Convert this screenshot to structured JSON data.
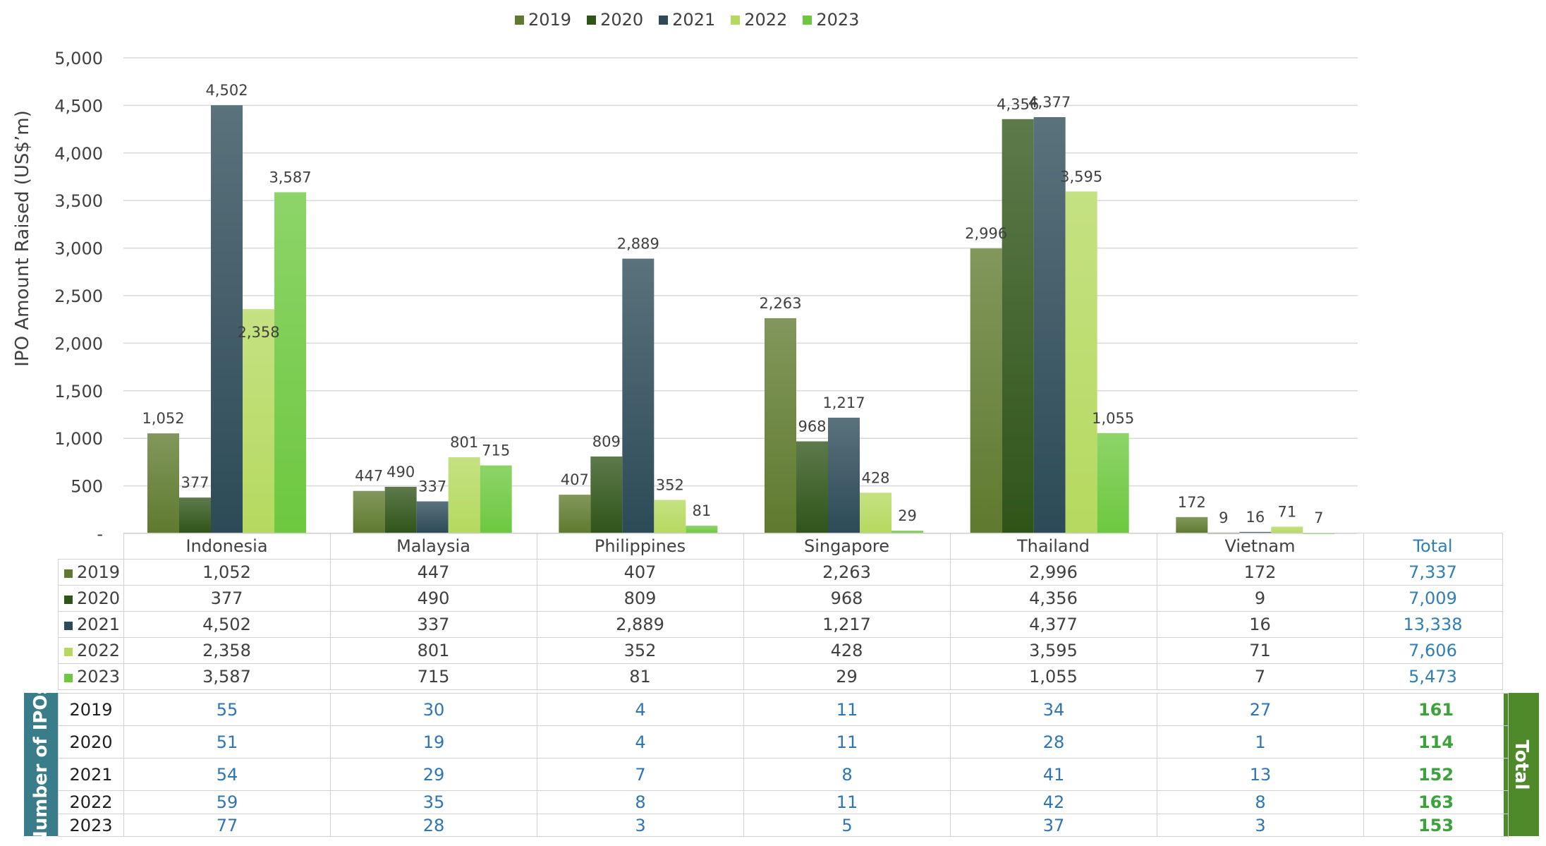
{
  "chart_data": {
    "type": "bar",
    "ylabel": "IPO Amount Raised (US$’m)",
    "ylim": [
      0,
      5000
    ],
    "yticks": [
      "-",
      "500",
      "1,000",
      "1,500",
      "2,000",
      "2,500",
      "3,000",
      "3,500",
      "4,000",
      "4,500",
      "5,000"
    ],
    "categories": [
      "Indonesia",
      "Malaysia",
      "Philippines",
      "Singapore",
      "Thailand",
      "Vietnam"
    ],
    "series": [
      {
        "name": "2019",
        "color": "#5f7a2e",
        "values": [
          1052,
          447,
          407,
          2263,
          2996,
          172
        ],
        "labels": [
          "1,052",
          "447",
          "407",
          "2,263",
          "2,996",
          "172"
        ]
      },
      {
        "name": "2020",
        "color": "#2f5418",
        "values": [
          377,
          490,
          809,
          968,
          4356,
          9
        ],
        "labels": [
          "377",
          "490",
          "809",
          "968",
          "4,356",
          "9"
        ]
      },
      {
        "name": "2021",
        "color": "#2c4a57",
        "values": [
          4502,
          337,
          2889,
          1217,
          4377,
          16
        ],
        "labels": [
          "4,502",
          "337",
          "2,889",
          "1,217",
          "4,377",
          "16"
        ]
      },
      {
        "name": "2022",
        "color": "#b5d95f",
        "values": [
          2358,
          801,
          352,
          428,
          3595,
          71
        ],
        "labels": [
          "2,358",
          "801",
          "352",
          "428",
          "3,595",
          "71"
        ]
      },
      {
        "name": "2023",
        "color": "#6dc83f",
        "values": [
          3587,
          715,
          81,
          29,
          1055,
          7
        ],
        "labels": [
          "3,587",
          "715",
          "81",
          "29",
          "1,055",
          "7"
        ]
      }
    ]
  },
  "amount_table": {
    "total_header": "Total",
    "rows": [
      {
        "year": "2019",
        "color": "#5f7a2e",
        "cells": [
          "1,052",
          "447",
          "407",
          "2,263",
          "2,996",
          "172"
        ],
        "total": "7,337"
      },
      {
        "year": "2020",
        "color": "#2f5418",
        "cells": [
          "377",
          "490",
          "809",
          "968",
          "4,356",
          "9"
        ],
        "total": "7,009"
      },
      {
        "year": "2021",
        "color": "#2c4a57",
        "cells": [
          "4,502",
          "337",
          "2,889",
          "1,217",
          "4,377",
          "16"
        ],
        "total": "13,338"
      },
      {
        "year": "2022",
        "color": "#b5d95f",
        "cells": [
          "2,358",
          "801",
          "352",
          "428",
          "3,595",
          "71"
        ],
        "total": "7,606"
      },
      {
        "year": "2023",
        "color": "#6dc83f",
        "cells": [
          "3,587",
          "715",
          "81",
          "29",
          "1,055",
          "7"
        ],
        "total": "5,473"
      }
    ]
  },
  "ipo_table": {
    "side_label": "Number of IPOs",
    "total_label": "Total",
    "rows": [
      {
        "year": "2019",
        "cells": [
          "55",
          "30",
          "4",
          "11",
          "34",
          "27"
        ],
        "total": "161"
      },
      {
        "year": "2020",
        "cells": [
          "51",
          "19",
          "4",
          "11",
          "28",
          "1"
        ],
        "total": "114"
      },
      {
        "year": "2021",
        "cells": [
          "54",
          "29",
          "7",
          "8",
          "41",
          "13"
        ],
        "total": "152"
      },
      {
        "year": "2022",
        "cells": [
          "59",
          "35",
          "8",
          "11",
          "42",
          "8"
        ],
        "total": "163"
      },
      {
        "year": "2023",
        "cells": [
          "77",
          "28",
          "3",
          "5",
          "37",
          "3"
        ],
        "total": "153"
      }
    ]
  }
}
